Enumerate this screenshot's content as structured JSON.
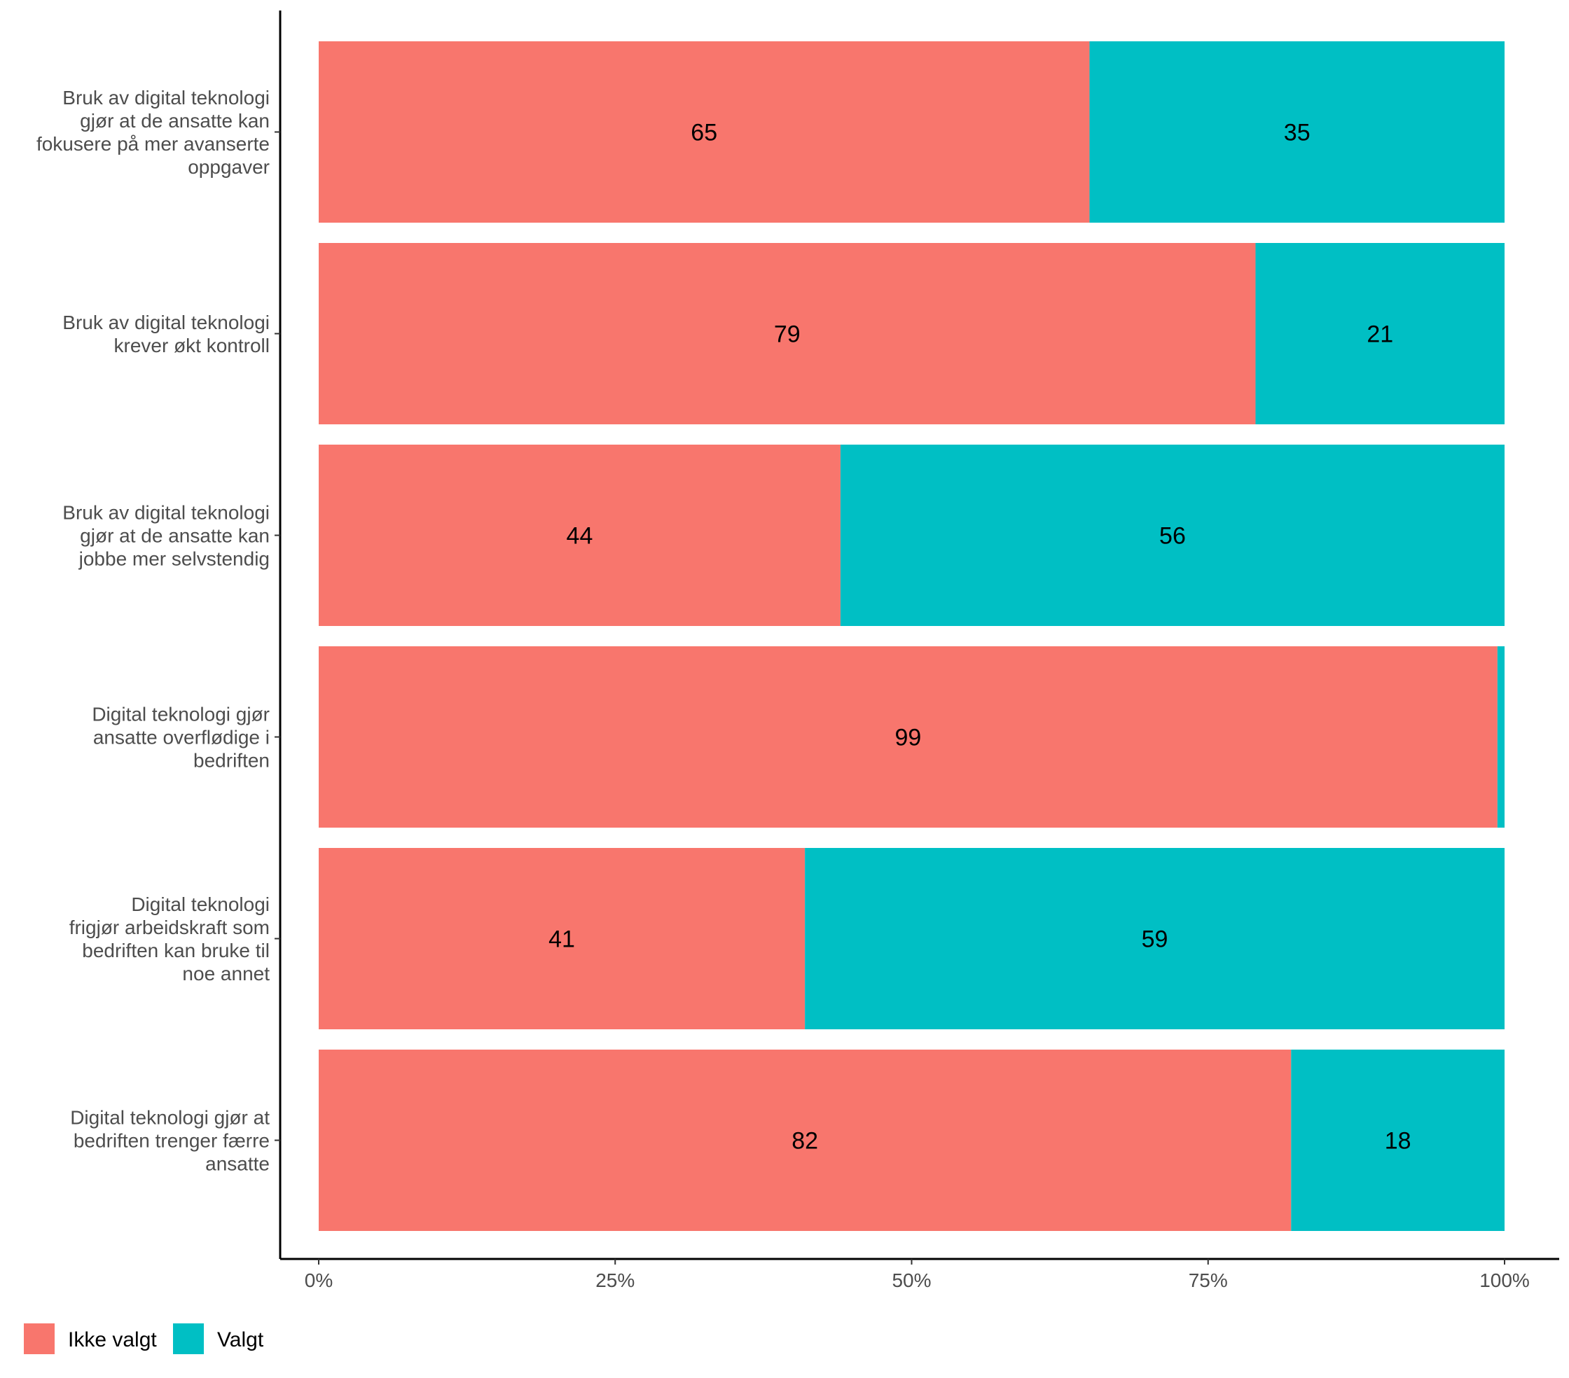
{
  "chart_data": {
    "type": "bar",
    "orientation": "horizontal",
    "stacked": "percent",
    "categories": [
      [
        "Bruk av digital teknologi",
        "gjør at de ansatte kan",
        "fokusere på mer avanserte",
        "oppgaver"
      ],
      [
        "Bruk av digital teknologi",
        "krever økt kontroll"
      ],
      [
        "Bruk av digital teknologi",
        "gjør at de ansatte kan",
        "jobbe mer selvstendig"
      ],
      [
        "Digital teknologi gjør",
        "ansatte overflødige i",
        "bedriften"
      ],
      [
        "Digital teknologi",
        "frigjør arbeidskraft som",
        "bedriften kan bruke til",
        "noe annet"
      ],
      [
        "Digital teknologi gjør at",
        "bedriften trenger færre",
        "ansatte"
      ]
    ],
    "series": [
      {
        "name": "Ikke valgt",
        "color": "#F8766D",
        "values": [
          65,
          79,
          44,
          99.4,
          41,
          82
        ],
        "labels": [
          "65",
          "79",
          "44",
          "99",
          "41",
          "82"
        ]
      },
      {
        "name": "Valgt",
        "color": "#00BFC4",
        "values": [
          35,
          21,
          56,
          0.6,
          59,
          18
        ],
        "labels": [
          "35",
          "21",
          "56",
          "",
          "59",
          "18"
        ]
      }
    ],
    "x_ticks": [
      "0%",
      "25%",
      "50%",
      "75%",
      "100%"
    ],
    "xlim": [
      0,
      100
    ],
    "grid": false,
    "legend_position": "bottom-left"
  }
}
